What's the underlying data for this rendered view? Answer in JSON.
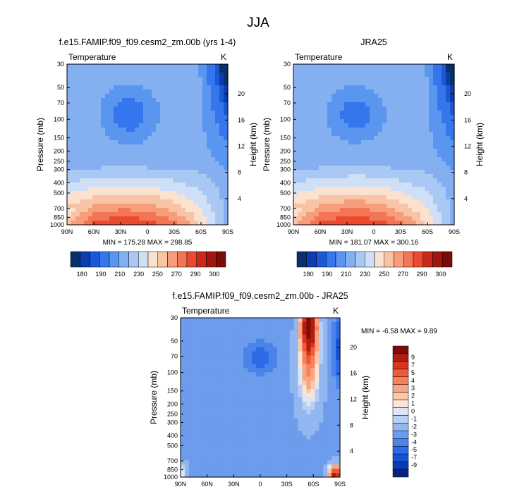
{
  "figure": {
    "title": "JJA"
  },
  "palette": {
    "absolute": [
      "#08306b",
      "#0d3bb0",
      "#1b58d6",
      "#3576ec",
      "#5a95f0",
      "#84b0f2",
      "#a9c9f4",
      "#cfe0f6",
      "#fbe1cf",
      "#f9c3a6",
      "#f69e7b",
      "#f27653",
      "#ec4a2f",
      "#c9281a",
      "#a3150f",
      "#7a0b08"
    ],
    "difference": [
      "#08247a",
      "#0b3bb4",
      "#1552dc",
      "#2c6ae6",
      "#4a84ea",
      "#6d9cec",
      "#92b6ef",
      "#b7cff3",
      "#dbe7f6",
      "#fde4d4",
      "#fbc7aa",
      "#f8a682",
      "#f4825c",
      "#ee5a38",
      "#d8341f",
      "#b31c10",
      "#7e0d08"
    ]
  },
  "chart_data": [
    {
      "type": "heatmap",
      "title": "f.e15.FAMIP.f09_f09.cesm2_zm.00b (yrs 1-4)",
      "variable_label": "Temperature",
      "units_label": "K",
      "xlabel": "",
      "ylabel": "Pressure (mb)",
      "y2label": "Height (km)",
      "x_ticks": [
        "90N",
        "60N",
        "30N",
        "0",
        "30S",
        "60S",
        "90S"
      ],
      "y_ticks": [
        "30",
        "50",
        "70",
        "100",
        "150",
        "200",
        "250",
        "300",
        "400",
        "500",
        "700",
        "850",
        "1000"
      ],
      "y2_ticks": [
        "20",
        "16",
        "12",
        "8",
        "4"
      ],
      "y_scale": "log",
      "min": 175.28,
      "max": 298.85,
      "minmax_text": "MIN = 175.28  MAX = 298.85",
      "colorbar_labels": [
        "180",
        "190",
        "210",
        "230",
        "250",
        "270",
        "290",
        "300"
      ]
    },
    {
      "type": "heatmap",
      "title": "JRA25",
      "variable_label": "Temperature",
      "units_label": "K",
      "xlabel": "",
      "ylabel": "Pressure (mb)",
      "y2label": "Height (km)",
      "x_ticks": [
        "90N",
        "60N",
        "30N",
        "0",
        "30S",
        "60S",
        "90S"
      ],
      "y_ticks": [
        "30",
        "50",
        "70",
        "100",
        "150",
        "200",
        "250",
        "300",
        "400",
        "500",
        "700",
        "850",
        "1000"
      ],
      "y2_ticks": [
        "20",
        "16",
        "12",
        "8",
        "4"
      ],
      "y_scale": "log",
      "min": 181.07,
      "max": 300.16,
      "minmax_text": "MIN = 181.07  MAX = 300.16",
      "colorbar_labels": [
        "180",
        "190",
        "210",
        "230",
        "250",
        "270",
        "290",
        "300"
      ]
    },
    {
      "type": "heatmap",
      "title": "f.e15.FAMIP.f09_f09.cesm2_zm.00b - JRA25",
      "variable_label": "Temperature",
      "units_label": "K",
      "xlabel": "",
      "ylabel": "Pressure (mb)",
      "y2label": "Height (km)",
      "x_ticks": [
        "90N",
        "60N",
        "30N",
        "0",
        "30S",
        "60S",
        "90S"
      ],
      "y_ticks": [
        "30",
        "50",
        "70",
        "100",
        "150",
        "200",
        "250",
        "300",
        "400",
        "500",
        "700",
        "850",
        "1000"
      ],
      "y2_ticks": [
        "20",
        "16",
        "12",
        "8",
        "4"
      ],
      "y_scale": "log",
      "min": -6.58,
      "max": 9.89,
      "minmax_text": "MIN = -6.58  MAX =  9.89",
      "colorbar_labels": [
        "9",
        "7",
        "5",
        "4",
        "3",
        "2",
        "1",
        "0",
        "-1",
        "-2",
        "-3",
        "-4",
        "-5",
        "-7",
        "-9"
      ]
    }
  ]
}
